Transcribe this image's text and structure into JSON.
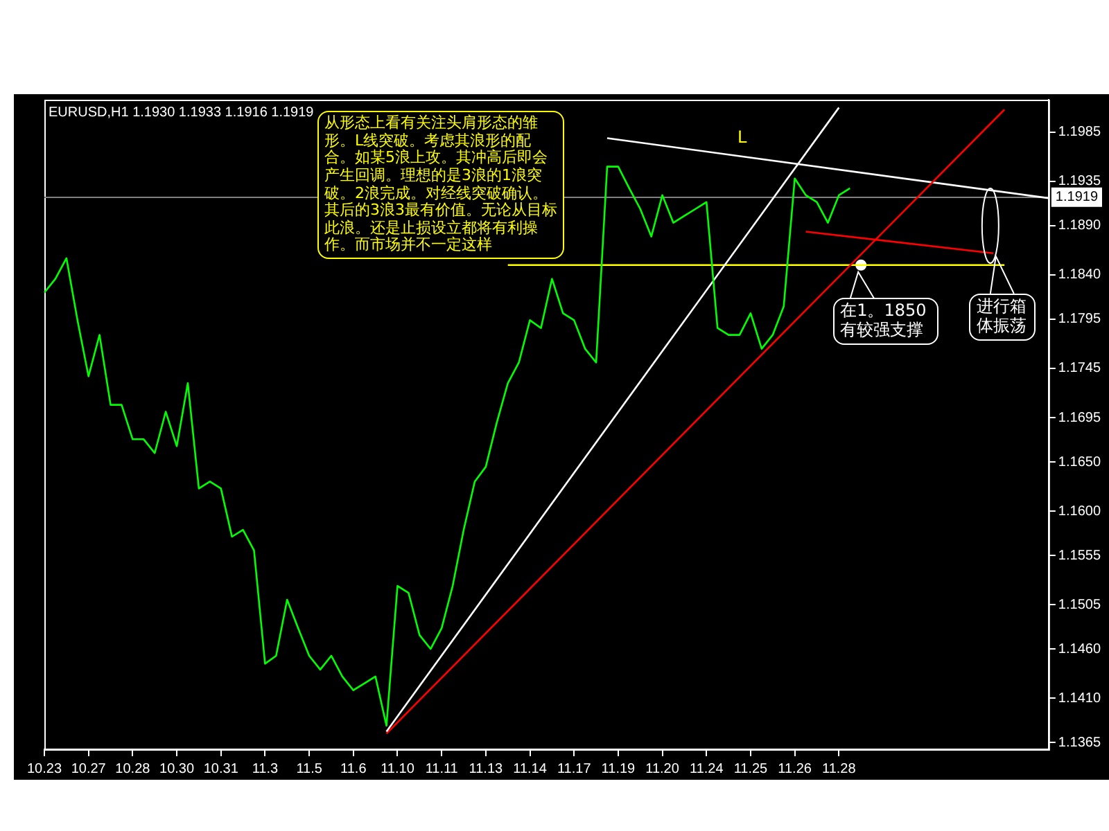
{
  "chart_data": {
    "type": "line",
    "title": "EURUSD,H1 1.1930 1.1933 1.1916 1.1919",
    "categories": [
      "10.23",
      null,
      null,
      null,
      "10.27",
      null,
      null,
      null,
      "10.28",
      null,
      null,
      null,
      "10.30",
      null,
      null,
      null,
      "10.31",
      null,
      null,
      null,
      "11.3",
      null,
      null,
      null,
      "11.5",
      null,
      null,
      null,
      "11.6",
      null,
      null,
      null,
      "11.10",
      null,
      null,
      null,
      "11.11",
      null,
      null,
      null,
      "11.13",
      null,
      null,
      null,
      "11.14",
      null,
      null,
      null,
      "11.17",
      null,
      null,
      null,
      "11.19",
      null,
      null,
      null,
      "11.20",
      null,
      null,
      null,
      "11.24",
      null,
      null,
      null,
      "11.25",
      null,
      null,
      null,
      "11.26",
      null,
      null,
      null,
      "11.28",
      null,
      null,
      null,
      null,
      null,
      null,
      null,
      null,
      null,
      null,
      null,
      null,
      null,
      null,
      null,
      null,
      null,
      null,
      null
    ],
    "ylim": [
      1.1358,
      1.2018
    ],
    "yticks": [
      1.1365,
      {
        "value": 1.141,
        "label": "1.1410"
      },
      {
        "value": 1.146,
        "label": "1.1460"
      },
      1.1505,
      1.1555,
      {
        "value": 1.16,
        "label": "1.1600"
      },
      {
        "value": 1.165,
        "label": "1.1650"
      },
      1.1695,
      1.1745,
      1.1795,
      {
        "value": 1.184,
        "label": "1.1840"
      },
      {
        "value": 1.189,
        "label": "1.1890"
      },
      1.1935,
      1.1985
    ],
    "grid": false,
    "legend": false,
    "marker": "none",
    "series": [
      {
        "color": "#00ff00",
        "values": [
          1.1822,
          1.1836,
          1.1857,
          1.1794,
          1.1737,
          1.1779,
          1.1708,
          1.1708,
          1.1673,
          1.1673,
          1.1659,
          1.1701,
          1.1666,
          1.173,
          1.1623,
          1.163,
          1.1623,
          1.1574,
          1.1581,
          1.156,
          1.1445,
          1.1453,
          1.151,
          1.1481,
          1.1453,
          1.1439,
          1.1453,
          1.1432,
          1.1418,
          1.1425,
          1.1432,
          1.1382,
          1.1524,
          1.1517,
          1.1474,
          1.146,
          1.1481,
          1.1524,
          1.1581,
          1.163,
          1.1645,
          1.169,
          1.173,
          1.1751,
          1.1794,
          1.1786,
          1.1836,
          1.1801,
          1.1794,
          1.1765,
          1.1751,
          1.195,
          1.195,
          1.1928,
          1.1907,
          1.1879,
          1.1921,
          1.1893,
          1.19,
          1.1907,
          1.1914,
          1.1786,
          1.1779,
          1.1779,
          1.1801,
          1.1765,
          1.1779,
          1.1808,
          1.1938,
          1.1921,
          1.1914,
          1.1893,
          1.1921,
          1.1928,
          null,
          null,
          null,
          null,
          null,
          null,
          null,
          null,
          null,
          null,
          null,
          null,
          null,
          null,
          null,
          null,
          null,
          null
        ]
      },
      {
        "color": "#ffffff",
        "values": [
          null,
          null,
          null,
          null,
          null,
          null,
          null,
          null,
          null,
          null,
          null,
          null,
          null,
          null,
          null,
          null,
          null,
          null,
          null,
          null,
          null,
          null,
          null,
          null,
          null,
          null,
          null,
          null,
          null,
          null,
          null,
          1.1376,
          null,
          null,
          null,
          null,
          null,
          null,
          null,
          null,
          null,
          null,
          null,
          null,
          null,
          null,
          null,
          null,
          null,
          null,
          null,
          null,
          null,
          null,
          null,
          null,
          null,
          null,
          null,
          null,
          null,
          null,
          null,
          null,
          null,
          null,
          null,
          null,
          null,
          null,
          null,
          null,
          1.201,
          null,
          null,
          null,
          null,
          null,
          null,
          null,
          null,
          null,
          null,
          null,
          null,
          null,
          null,
          null,
          null,
          null,
          null,
          null
        ]
      },
      {
        "color": "#ff0000",
        "values": [
          null,
          null,
          null,
          null,
          null,
          null,
          null,
          null,
          null,
          null,
          null,
          null,
          null,
          null,
          null,
          null,
          null,
          null,
          null,
          null,
          null,
          null,
          null,
          null,
          null,
          null,
          null,
          null,
          null,
          null,
          null,
          1.1374,
          null,
          null,
          null,
          null,
          null,
          null,
          null,
          null,
          null,
          null,
          null,
          null,
          null,
          null,
          null,
          null,
          null,
          null,
          null,
          null,
          null,
          null,
          null,
          null,
          null,
          null,
          null,
          null,
          null,
          null,
          null,
          null,
          null,
          null,
          null,
          null,
          null,
          null,
          null,
          null,
          null,
          null,
          null,
          null,
          null,
          null,
          null,
          null,
          null,
          null,
          null,
          null,
          null,
          null,
          null,
          1.2008,
          null,
          null,
          null,
          null
        ]
      },
      {
        "color": "#ffffff",
        "values": [
          null,
          null,
          null,
          null,
          null,
          null,
          null,
          null,
          null,
          null,
          null,
          null,
          null,
          null,
          null,
          null,
          null,
          null,
          null,
          null,
          null,
          null,
          null,
          null,
          null,
          null,
          null,
          null,
          null,
          null,
          null,
          null,
          null,
          null,
          null,
          null,
          null,
          null,
          null,
          null,
          null,
          null,
          null,
          null,
          null,
          null,
          null,
          null,
          null,
          null,
          null,
          1.1979,
          null,
          null,
          null,
          null,
          null,
          null,
          null,
          null,
          null,
          null,
          null,
          null,
          null,
          null,
          null,
          null,
          null,
          null,
          null,
          null,
          null,
          null,
          null,
          null,
          null,
          null,
          null,
          null,
          null,
          null,
          null,
          null,
          null,
          null,
          null,
          null,
          null,
          null,
          null,
          1.1918
        ]
      },
      {
        "color": "#ff0000",
        "values": [
          null,
          null,
          null,
          null,
          null,
          null,
          null,
          null,
          null,
          null,
          null,
          null,
          null,
          null,
          null,
          null,
          null,
          null,
          null,
          null,
          null,
          null,
          null,
          null,
          null,
          null,
          null,
          null,
          null,
          null,
          null,
          null,
          null,
          null,
          null,
          null,
          null,
          null,
          null,
          null,
          null,
          null,
          null,
          null,
          null,
          null,
          null,
          null,
          null,
          null,
          null,
          null,
          null,
          null,
          null,
          null,
          null,
          null,
          null,
          null,
          null,
          null,
          null,
          null,
          null,
          null,
          null,
          null,
          null,
          1.1884,
          null,
          null,
          null,
          null,
          null,
          null,
          null,
          null,
          null,
          null,
          null,
          null,
          null,
          null,
          null,
          null,
          1.1862,
          null,
          null,
          null,
          null,
          null
        ]
      },
      {
        "color": "#ffff00",
        "values": [
          null,
          null,
          null,
          null,
          null,
          null,
          null,
          null,
          null,
          null,
          null,
          null,
          null,
          null,
          null,
          null,
          null,
          null,
          null,
          null,
          null,
          null,
          null,
          null,
          null,
          null,
          null,
          null,
          null,
          null,
          null,
          null,
          null,
          null,
          null,
          null,
          null,
          null,
          null,
          null,
          null,
          null,
          1.185,
          null,
          null,
          null,
          null,
          null,
          null,
          null,
          null,
          null,
          null,
          null,
          null,
          null,
          null,
          null,
          null,
          null,
          null,
          null,
          null,
          null,
          null,
          null,
          null,
          null,
          null,
          null,
          null,
          null,
          null,
          null,
          null,
          null,
          null,
          null,
          null,
          null,
          null,
          null,
          null,
          null,
          null,
          null,
          null,
          1.185,
          null,
          null,
          null,
          null
        ]
      },
      {
        "type": "scatter",
        "marker": "circle",
        "color": "#ffffff",
        "values": [
          null,
          null,
          null,
          null,
          null,
          null,
          null,
          null,
          null,
          null,
          null,
          null,
          null,
          null,
          null,
          null,
          null,
          null,
          null,
          null,
          null,
          null,
          null,
          null,
          null,
          null,
          null,
          null,
          null,
          null,
          null,
          null,
          null,
          null,
          null,
          null,
          null,
          null,
          null,
          null,
          null,
          null,
          null,
          null,
          null,
          null,
          null,
          null,
          null,
          null,
          null,
          null,
          null,
          null,
          null,
          null,
          null,
          null,
          null,
          null,
          null,
          null,
          null,
          null,
          null,
          null,
          null,
          null,
          null,
          null,
          null,
          null,
          null,
          null,
          1.185,
          null,
          null,
          null,
          null,
          null,
          null,
          null,
          null,
          null,
          null,
          null,
          null,
          null,
          null,
          null,
          null,
          null
        ]
      }
    ],
    "ref_lines": [
      {
        "axis": "y",
        "value": 1.1919,
        "label": "1.1919",
        "color": "#808080"
      }
    ],
    "annotations": [
      "从形态上看有关注头肩形态的雏形。L线突破。考虑其浪形的配合。如某5浪上攻。其冲高后即会产生回调。理想的是3浪的1浪突破。2浪完成。对经线突破确认。其后的3浪3最有价值。无论从目标此浪。还是止损设立都将有利操作。而市场并不一定这样",
      "L",
      {
        "text": "在1。1850有较强支撑",
        "y": 1.185
      },
      "进行箱体振荡"
    ]
  }
}
